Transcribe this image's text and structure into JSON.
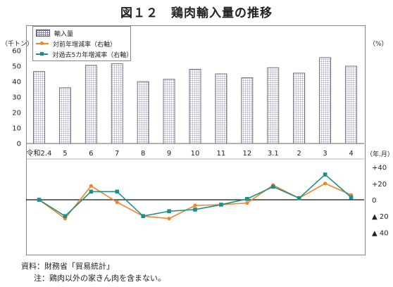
{
  "title": {
    "figure_no": "図１２",
    "text": "鶏肉輸入量の推移"
  },
  "units": {
    "left": "（千トン）",
    "right": "（%）",
    "x_unit": "（年.月）"
  },
  "legend": {
    "bar": "輸入量",
    "line1": "対前年増減率（右軸）",
    "line2": "対過去5カ年増減率（右軸）"
  },
  "notes": {
    "source": "資料：財務省「貿易統計」",
    "note": "注：鶏肉以外の家きん肉を含まない。"
  },
  "colors": {
    "bar_grid": "#7f7fb0",
    "line1": "#f0852b",
    "line2": "#1c8f8a"
  },
  "chart_data": {
    "type": "bar",
    "categories": [
      "令和2.4",
      "5",
      "6",
      "7",
      "8",
      "9",
      "10",
      "11",
      "12",
      "3.1",
      "2",
      "3",
      "4"
    ],
    "series": [
      {
        "name": "輸入量",
        "type": "bar",
        "axis": "left",
        "values": [
          46.5,
          36,
          50.5,
          51.5,
          40,
          41.5,
          48,
          45,
          42.5,
          49,
          45.5,
          55.5,
          50
        ]
      },
      {
        "name": "対前年増減率（右軸）",
        "type": "line",
        "axis": "right",
        "values": [
          0,
          -23,
          17,
          -3,
          -20,
          -23,
          -7,
          -6,
          -4,
          18,
          2,
          20,
          6
        ]
      },
      {
        "name": "対過去5カ年増減率（右軸）",
        "type": "line",
        "axis": "right",
        "values": [
          0,
          -20,
          10,
          10,
          -20,
          -14,
          -12,
          -6,
          1,
          16,
          2,
          31,
          3
        ]
      }
    ],
    "left_axis": {
      "ticks": [
        "0",
        "10",
        "20",
        "30",
        "40",
        "50",
        "60"
      ],
      "ylim": [
        0,
        60
      ]
    },
    "right_axis": {
      "ticks": [
        "+40",
        "+20",
        "0",
        "▲ 20",
        "▲ 40"
      ],
      "ylim": [
        -50,
        50
      ]
    }
  }
}
